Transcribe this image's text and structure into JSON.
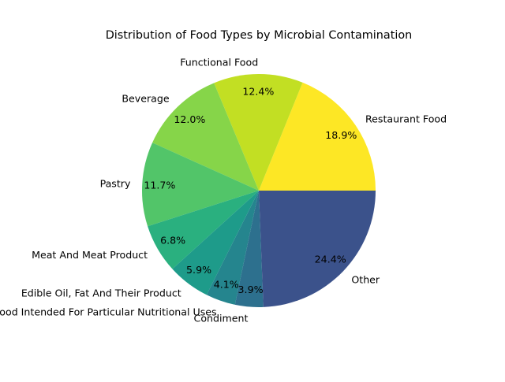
{
  "chart_data": {
    "type": "pie",
    "title": "Distribution of Food Types by Microbial Contamination",
    "start_angle_deg": 0,
    "direction": "counterclockwise",
    "legend": "none",
    "slices": [
      {
        "label": "Restaurant Food",
        "percent": 18.9,
        "percent_label": "18.9%",
        "color": "#fde725"
      },
      {
        "label": "Functional Food",
        "percent": 12.4,
        "percent_label": "12.4%",
        "color": "#c2df23"
      },
      {
        "label": "Beverage",
        "percent": 12.0,
        "percent_label": "12.0%",
        "color": "#86d549"
      },
      {
        "label": "Pastry",
        "percent": 11.7,
        "percent_label": "11.7%",
        "color": "#52c569"
      },
      {
        "label": "Meat And Meat Product",
        "percent": 6.8,
        "percent_label": "6.8%",
        "color": "#2ab07f"
      },
      {
        "label": "Edible Oil, Fat And Their Product",
        "percent": 5.9,
        "percent_label": "5.9%",
        "color": "#1e9b8a"
      },
      {
        "label": "Food Intended For Particular Nutritional Uses",
        "percent": 4.1,
        "percent_label": "4.1%",
        "color": "#25858e"
      },
      {
        "label": "Condiment",
        "percent": 3.9,
        "percent_label": "3.9%",
        "color": "#2d708e"
      },
      {
        "label": "Other",
        "percent": 24.4,
        "percent_label": "24.4%",
        "color": "#3b528b"
      }
    ]
  }
}
